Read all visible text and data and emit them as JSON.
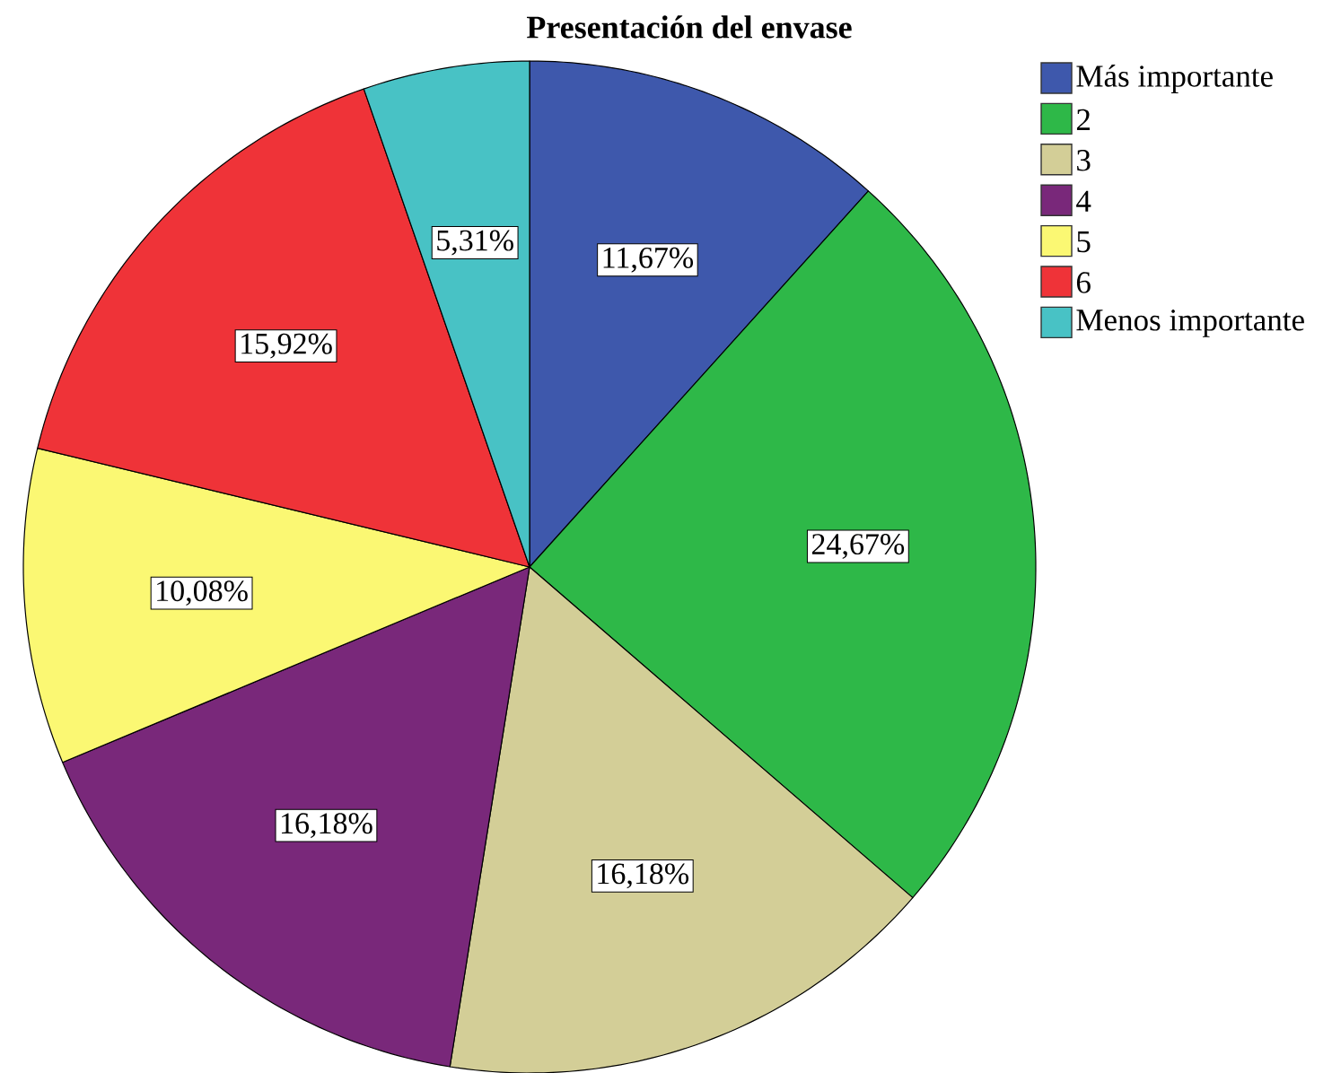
{
  "chart_data": {
    "type": "pie",
    "title": "Presentación del envase",
    "categories": [
      "Más importante",
      "2",
      "3",
      "4",
      "5",
      "6",
      "Menos importante"
    ],
    "values": [
      11.67,
      24.67,
      16.18,
      16.18,
      10.08,
      15.92,
      5.31
    ],
    "colors": [
      "#3e58ac",
      "#2eb848",
      "#d3ce97",
      "#79287a",
      "#fbf873",
      "#ef3338",
      "#48c2c5"
    ],
    "value_labels": [
      "11,67%",
      "24,67%",
      "16,18%",
      "16,18%",
      "10,08%",
      "15,92%",
      "5,31%"
    ],
    "legend": "top right"
  }
}
